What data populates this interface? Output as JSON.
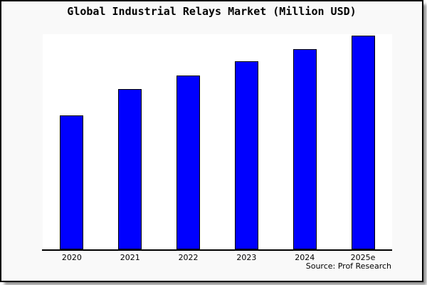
{
  "chart_data": {
    "type": "bar",
    "title": "Global Industrial Relays Market (Million USD)",
    "categories": [
      "2020",
      "2021",
      "2022",
      "2023",
      "2024",
      "2025e"
    ],
    "values": [
      62.8,
      75.1,
      81.5,
      87.9,
      93.7,
      100
    ],
    "values_note": "y-axis is unlabeled (no ticks or gridlines); values are estimated relative heights indexed to 2025e = 100",
    "xlabel": "",
    "ylabel": "",
    "ylim": [
      0,
      100.5
    ],
    "grid": false,
    "legend": null,
    "bar_color": "#0000FF",
    "bar_border_color": "#000000",
    "plot_background": "#ffffff",
    "canvas_background": "#f9f9f9",
    "source_note": "Source: Prof Research"
  }
}
